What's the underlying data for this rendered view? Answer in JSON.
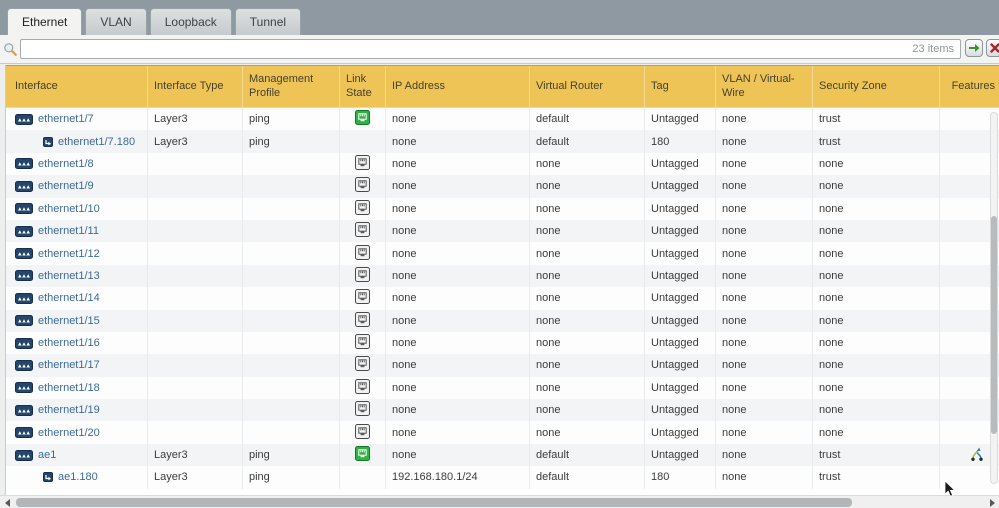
{
  "tabs": [
    {
      "label": "Ethernet",
      "active": true
    },
    {
      "label": "VLAN",
      "active": false
    },
    {
      "label": "Loopback",
      "active": false
    },
    {
      "label": "Tunnel",
      "active": false
    }
  ],
  "toolbar": {
    "search_value": "",
    "search_placeholder": "",
    "items_count": "23 items",
    "icons": {
      "search": "magnifier-icon",
      "apply": "green-arrow-icon",
      "clear": "red-x-icon"
    }
  },
  "table": {
    "columns": [
      "Interface",
      "Interface Type",
      "Management Profile",
      "Link State",
      "IP Address",
      "Virtual Router",
      "Tag",
      "VLAN / Virtual-Wire",
      "Security Zone",
      "Features"
    ],
    "rows": [
      {
        "name": "ethernet1/7",
        "sub": false,
        "type": "Layer3",
        "mgmt": "ping",
        "link": "up",
        "ip": "none",
        "vr": "default",
        "tag": "Untagged",
        "vlan": "none",
        "zone": "trust",
        "features": ""
      },
      {
        "name": "ethernet1/7.180",
        "sub": true,
        "type": "Layer3",
        "mgmt": "ping",
        "link": "",
        "ip": "none",
        "vr": "default",
        "tag": "180",
        "vlan": "none",
        "zone": "trust",
        "features": ""
      },
      {
        "name": "ethernet1/8",
        "sub": false,
        "type": "",
        "mgmt": "",
        "link": "unknown",
        "ip": "none",
        "vr": "none",
        "tag": "Untagged",
        "vlan": "none",
        "zone": "none",
        "features": ""
      },
      {
        "name": "ethernet1/9",
        "sub": false,
        "type": "",
        "mgmt": "",
        "link": "unknown",
        "ip": "none",
        "vr": "none",
        "tag": "Untagged",
        "vlan": "none",
        "zone": "none",
        "features": ""
      },
      {
        "name": "ethernet1/10",
        "sub": false,
        "type": "",
        "mgmt": "",
        "link": "unknown",
        "ip": "none",
        "vr": "none",
        "tag": "Untagged",
        "vlan": "none",
        "zone": "none",
        "features": ""
      },
      {
        "name": "ethernet1/11",
        "sub": false,
        "type": "",
        "mgmt": "",
        "link": "unknown",
        "ip": "none",
        "vr": "none",
        "tag": "Untagged",
        "vlan": "none",
        "zone": "none",
        "features": ""
      },
      {
        "name": "ethernet1/12",
        "sub": false,
        "type": "",
        "mgmt": "",
        "link": "unknown",
        "ip": "none",
        "vr": "none",
        "tag": "Untagged",
        "vlan": "none",
        "zone": "none",
        "features": ""
      },
      {
        "name": "ethernet1/13",
        "sub": false,
        "type": "",
        "mgmt": "",
        "link": "unknown",
        "ip": "none",
        "vr": "none",
        "tag": "Untagged",
        "vlan": "none",
        "zone": "none",
        "features": ""
      },
      {
        "name": "ethernet1/14",
        "sub": false,
        "type": "",
        "mgmt": "",
        "link": "unknown",
        "ip": "none",
        "vr": "none",
        "tag": "Untagged",
        "vlan": "none",
        "zone": "none",
        "features": ""
      },
      {
        "name": "ethernet1/15",
        "sub": false,
        "type": "",
        "mgmt": "",
        "link": "unknown",
        "ip": "none",
        "vr": "none",
        "tag": "Untagged",
        "vlan": "none",
        "zone": "none",
        "features": ""
      },
      {
        "name": "ethernet1/16",
        "sub": false,
        "type": "",
        "mgmt": "",
        "link": "unknown",
        "ip": "none",
        "vr": "none",
        "tag": "Untagged",
        "vlan": "none",
        "zone": "none",
        "features": ""
      },
      {
        "name": "ethernet1/17",
        "sub": false,
        "type": "",
        "mgmt": "",
        "link": "unknown",
        "ip": "none",
        "vr": "none",
        "tag": "Untagged",
        "vlan": "none",
        "zone": "none",
        "features": ""
      },
      {
        "name": "ethernet1/18",
        "sub": false,
        "type": "",
        "mgmt": "",
        "link": "unknown",
        "ip": "none",
        "vr": "none",
        "tag": "Untagged",
        "vlan": "none",
        "zone": "none",
        "features": ""
      },
      {
        "name": "ethernet1/19",
        "sub": false,
        "type": "",
        "mgmt": "",
        "link": "unknown",
        "ip": "none",
        "vr": "none",
        "tag": "Untagged",
        "vlan": "none",
        "zone": "none",
        "features": ""
      },
      {
        "name": "ethernet1/20",
        "sub": false,
        "type": "",
        "mgmt": "",
        "link": "unknown",
        "ip": "none",
        "vr": "none",
        "tag": "Untagged",
        "vlan": "none",
        "zone": "none",
        "features": ""
      },
      {
        "name": "ae1",
        "sub": false,
        "type": "Layer3",
        "mgmt": "ping",
        "link": "up",
        "ip": "none",
        "vr": "default",
        "tag": "Untagged",
        "vlan": "none",
        "zone": "trust",
        "features": "aggregate"
      },
      {
        "name": "ae1.180",
        "sub": true,
        "type": "Layer3",
        "mgmt": "ping",
        "link": "",
        "ip": "192.168.180.1/24",
        "vr": "default",
        "tag": "180",
        "vlan": "none",
        "zone": "trust",
        "features": ""
      }
    ]
  },
  "colors": {
    "header_bg": "#EFC456",
    "tab_strip": "#8E99A1",
    "link_up_green": "#2FB344",
    "interface_link": "#3D6B96"
  }
}
